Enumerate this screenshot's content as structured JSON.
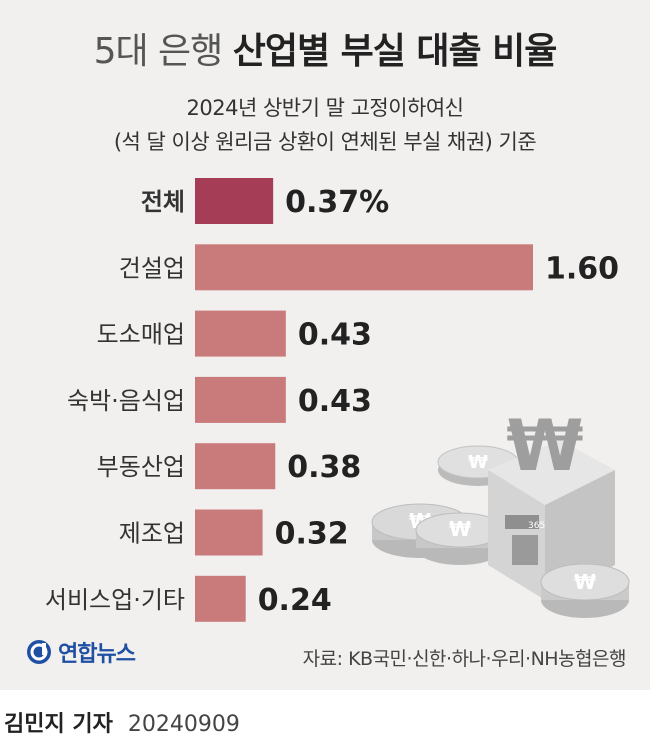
{
  "header": {
    "title_light": "5대 은행",
    "title_bold": "산업별 부실 대출 비율",
    "subtitle_1": "2024년 상반기 말 고정이하여신",
    "subtitle_2": "(석 달 이상 원리금 상환이 연체된 부실 채권) 기준"
  },
  "chart_data": {
    "type": "bar",
    "orientation": "horizontal",
    "categories": [
      "전체",
      "건설업",
      "도소매업",
      "숙박·음식업",
      "부동산업",
      "제조업",
      "서비스업·기타"
    ],
    "values": [
      0.37,
      1.6,
      0.43,
      0.43,
      0.38,
      0.32,
      0.24
    ],
    "value_labels": [
      "0.37%",
      "1.60",
      "0.43",
      "0.43",
      "0.38",
      "0.32",
      "0.24"
    ],
    "highlight_index": 0,
    "colors": {
      "highlight": "#a53d57",
      "bar": "#c97b7c"
    },
    "grid": false
  },
  "footer": {
    "logo_text": "연합뉴스",
    "source": "자료: KB국민·신한·하나·우리·NH농협은행",
    "reporter": "김민지 기자",
    "date": "20240909"
  }
}
